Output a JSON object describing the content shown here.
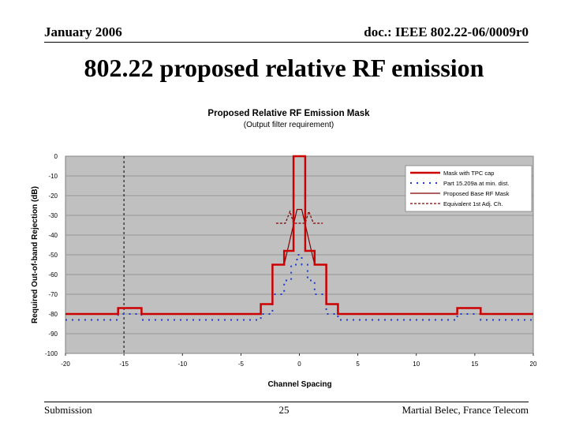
{
  "header": {
    "date": "January 2006",
    "doc": "doc.: IEEE 802.22-06/0009r0"
  },
  "slide": {
    "title": "802.22 proposed relative RF emission"
  },
  "footer": {
    "left": "Submission",
    "page": "25",
    "author": "Martial Belec, France Telecom"
  },
  "chart_data": {
    "type": "line",
    "title": "Proposed Relative RF Emission Mask",
    "subtitle": "(Output filter requirement)",
    "xlabel": "Channel Spacing",
    "ylabel": "Required Out-of-band Rejection (dB)",
    "xlim": [
      -20,
      20
    ],
    "ylim": [
      -100,
      0
    ],
    "x_ticks": [
      "-20",
      "-15",
      "-10",
      "-5",
      "0",
      "5",
      "10",
      "15",
      "20"
    ],
    "y_ticks": [
      "0",
      "-10",
      "-20",
      "-30",
      "-40",
      "-50",
      "-60",
      "-70",
      "-80",
      "-90",
      "-100"
    ],
    "grid": "horizontal",
    "legend_position": "top-right",
    "plot_background": "#c0c0c0",
    "reference_line": {
      "x": -15,
      "style": "dashed"
    },
    "series": [
      {
        "name": "Mask with TPC cap",
        "color": "#cc0000",
        "style": "solid-thick",
        "points": [
          [
            -20,
            -80
          ],
          [
            -15.5,
            -80
          ],
          [
            -15.5,
            -77
          ],
          [
            -13.5,
            -77
          ],
          [
            -13.5,
            -80
          ],
          [
            -3.3,
            -80
          ],
          [
            -3.3,
            -75
          ],
          [
            -2.3,
            -75
          ],
          [
            -2.3,
            -55
          ],
          [
            -1.3,
            -55
          ],
          [
            -1.3,
            -48
          ],
          [
            -0.5,
            -48
          ],
          [
            -0.5,
            0
          ],
          [
            0.5,
            0
          ],
          [
            0.5,
            -48
          ],
          [
            1.3,
            -48
          ],
          [
            1.3,
            -55
          ],
          [
            2.3,
            -55
          ],
          [
            2.3,
            -75
          ],
          [
            3.3,
            -75
          ],
          [
            3.3,
            -80
          ],
          [
            13.5,
            -80
          ],
          [
            13.5,
            -77
          ],
          [
            15.5,
            -77
          ],
          [
            15.5,
            -80
          ],
          [
            20,
            -80
          ]
        ]
      },
      {
        "name": "Part 15.209a at min. dist.",
        "color": "#1f3ccc",
        "style": "dotted",
        "points": [
          [
            -20,
            -83
          ],
          [
            -15.5,
            -83
          ],
          [
            -15.5,
            -80
          ],
          [
            -13.5,
            -80
          ],
          [
            -13.5,
            -83
          ],
          [
            -3.3,
            -83
          ],
          [
            -3.3,
            -80
          ],
          [
            -2.3,
            -80
          ],
          [
            -2.3,
            -70
          ],
          [
            -1.3,
            -70
          ],
          [
            -1.3,
            -63
          ],
          [
            -0.7,
            -63
          ],
          [
            -0.7,
            -55
          ],
          [
            -0.2,
            -55
          ],
          [
            -0.2,
            -50
          ],
          [
            0.2,
            -50
          ],
          [
            0.2,
            -55
          ],
          [
            0.7,
            -55
          ],
          [
            0.7,
            -63
          ],
          [
            1.3,
            -63
          ],
          [
            1.3,
            -70
          ],
          [
            2.3,
            -70
          ],
          [
            2.3,
            -80
          ],
          [
            3.3,
            -80
          ],
          [
            3.3,
            -83
          ],
          [
            13.5,
            -83
          ],
          [
            13.5,
            -80
          ],
          [
            15.5,
            -80
          ],
          [
            15.5,
            -83
          ],
          [
            20,
            -83
          ]
        ]
      },
      {
        "name": "Proposed Base RF Mask",
        "color": "#800000",
        "style": "solid-thin",
        "points": [
          [
            -1.3,
            -55
          ],
          [
            -0.2,
            -27
          ],
          [
            0.2,
            -27
          ],
          [
            1.3,
            -55
          ]
        ]
      },
      {
        "name": "Equivalent 1st Adj. Ch.",
        "color": "#800000",
        "style": "dashed",
        "points": [
          [
            -2,
            -34
          ],
          [
            -1.2,
            -34
          ],
          [
            -0.8,
            -28
          ],
          [
            -0.5,
            -34
          ],
          [
            0.5,
            -34
          ],
          [
            0.8,
            -28
          ],
          [
            1.2,
            -34
          ],
          [
            2,
            -34
          ]
        ]
      }
    ]
  }
}
